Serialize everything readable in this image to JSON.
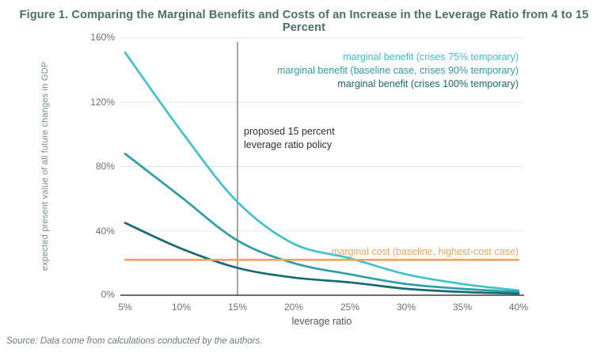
{
  "title": "Figure 1. Comparing the Marginal Benefits and Costs of an Increase in the Leverage Ratio from 4 to 15 Percent",
  "source": "Source: Data come from calculations conducted by the authors.",
  "annotation": {
    "line1": "proposed 15 percent",
    "line2": "leverage ratio policy"
  },
  "axes": {
    "xlabel": "leverage ratio",
    "ylabel": "expected present value of all future changes in GDP",
    "x_ticks": [
      "5%",
      "10%",
      "15%",
      "20%",
      "25%",
      "30%",
      "35%",
      "40%"
    ],
    "y_ticks": [
      "160%",
      "120%",
      "80%",
      "40%",
      "0%"
    ]
  },
  "colors": {
    "title": "#4b7163",
    "gridline": "#e7e7e7",
    "axis_line": "#3f3f3f",
    "policy_line": "#4c4c4c",
    "tick_text": "#6f6f6f"
  },
  "chart_data": {
    "type": "line",
    "x": [
      5,
      10,
      15,
      20,
      25,
      30,
      35,
      40
    ],
    "series": [
      {
        "name": "marginal benefit (crises 75% temporary)",
        "color": "#3fc1ce",
        "values": [
          151,
          102,
          58,
          32,
          23,
          13,
          7,
          3
        ]
      },
      {
        "name": "marginal benefit (baseline case, crises 90% temporary)",
        "color": "#2b9ea6",
        "values": [
          88,
          61,
          34,
          20,
          13,
          7,
          4,
          2
        ]
      },
      {
        "name": "marginal benefit (crises 100% temporary)",
        "color": "#156a74",
        "values": [
          45,
          29,
          17,
          11,
          8,
          4,
          2,
          1
        ]
      },
      {
        "name": "marginal cost (baseline, highest-cost case)",
        "color": "#f2a45c",
        "values": [
          22,
          22,
          22,
          22,
          22,
          22,
          22,
          22
        ]
      }
    ],
    "title": "Figure 1. Comparing the Marginal Benefits and Costs of an Increase in the Leverage Ratio from 4 to 15 Percent",
    "xlabel": "leverage ratio",
    "ylabel": "expected present value of all future changes in GDP",
    "xlim": [
      5,
      40
    ],
    "ylim": [
      0,
      160
    ],
    "grid": true,
    "legend_position": "labels-inline",
    "annotation_x": 15,
    "annotation_text": "proposed 15 percent leverage ratio policy"
  }
}
